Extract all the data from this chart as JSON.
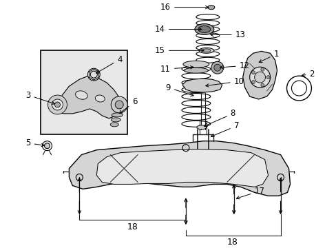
{
  "bg_color": "#ffffff",
  "fig_width": 4.89,
  "fig_height": 3.6,
  "dpi": 100,
  "line_color": "#1a1a1a",
  "gray_fill": "#d8d8d8",
  "light_gray": "#eeeeee",
  "dark_gray": "#888888"
}
